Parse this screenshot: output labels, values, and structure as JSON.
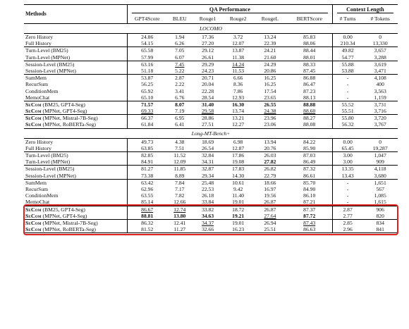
{
  "table": {
    "headers": {
      "methods": "Methods",
      "qa_group": "QA Performance",
      "ctx_group": "Context Length",
      "cols": [
        "GPT4Score",
        "BLEU",
        "Rouge1",
        "Rouge2",
        "RougeL",
        "BERTScore",
        "# Turns",
        "# Tokens"
      ]
    },
    "sections": [
      {
        "title": "LOCOMO",
        "groups": [
          [
            {
              "m": "Zero History",
              "v": [
                "24.86",
                "1.94",
                "17.36",
                "3.72",
                "13.24",
                "85.83",
                "0.00",
                "0"
              ]
            },
            {
              "m": "Full History",
              "v": [
                "54.15",
                "6.26",
                "27.20",
                "12.07",
                "22.39",
                "88.06",
                "210.34",
                "13,330"
              ]
            }
          ],
          [
            {
              "m": "Turn-Level (BM25)",
              "v": [
                "65.58",
                "7.05",
                "29.12",
                "13.87",
                "24.21",
                "88.44",
                "49.82",
                "3,657"
              ]
            },
            {
              "m": "Turn-Level (MPNet)",
              "v": [
                "57.99",
                "6.07",
                "26.61",
                "11.38",
                "21.60",
                "88.01",
                "54.77",
                "3,288"
              ]
            }
          ],
          [
            {
              "m": "Session-Level (BM25)",
              "v": [
                "63.16",
                "7.45",
                "29.29",
                "14.24",
                "24.29",
                "88.33",
                "55.88",
                "3,619"
              ],
              "u": [
                1,
                3
              ]
            },
            {
              "m": "Session-Level (MPNet)",
              "v": [
                "51.18",
                "5.22",
                "24.23",
                "11.53",
                "20.86",
                "87.45",
                "53.88",
                "3,471"
              ]
            }
          ],
          [
            {
              "m": "SumMem",
              "v": [
                "53.87",
                "2.87",
                "20.71",
                "6.66",
                "16.25",
                "86.88",
                "-",
                "4,108"
              ]
            },
            {
              "m": "RecurSum",
              "v": [
                "56.25",
                "2.22",
                "20.04",
                "8.36",
                "16.25",
                "86.47",
                "-",
                "400"
              ]
            },
            {
              "m": "ConditionMem",
              "v": [
                "65.92",
                "3.41",
                "22.28",
                "7.86",
                "17.54",
                "87.23",
                "-",
                "3,563"
              ]
            },
            {
              "m": "MemoChat",
              "v": [
                "65.10",
                "6.76",
                "28.54",
                "12.93",
                "23.65",
                "88.13",
                "-",
                "1,159"
              ]
            }
          ],
          [
            {
              "m": "SeCom",
              "s": " (BM25, GPT4-Seg)",
              "v": [
                "71.57",
                "8.07",
                "31.40",
                "16.30",
                "26.55",
                "88.88",
                "55.52",
                "3,731"
              ],
              "b": [
                0,
                1,
                2,
                3,
                4,
                5
              ]
            },
            {
              "m": "SeCom",
              "s": " (MPNet, GPT4-Seg)",
              "v": [
                "69.33",
                "7.19",
                "29.58",
                "13.74",
                "24.38",
                "88.60",
                "55.51",
                "3,716"
              ],
              "u": [
                0,
                2,
                4,
                5
              ]
            }
          ],
          [
            {
              "m": "SeCom",
              "s": " (MPNet, Mistral-7B-Seg)",
              "v": [
                "66.37",
                "6.95",
                "28.86",
                "13.21",
                "23.96",
                "88.27",
                "55.80",
                "3,720"
              ]
            },
            {
              "m": "SeCom",
              "s": " (MPNet, RoBERTa-Seg)",
              "v": [
                "61.84",
                "6.41",
                "27.51",
                "12.27",
                "23.06",
                "88.08",
                "56.32",
                "3,767"
              ]
            }
          ]
        ]
      },
      {
        "title": "Long-MT-Bench+",
        "groups": [
          [
            {
              "m": "Zero History",
              "v": [
                "49.73",
                "4.38",
                "18.69",
                "6.98",
                "13.94",
                "84.22",
                "0.00",
                "0"
              ]
            },
            {
              "m": "Full History",
              "v": [
                "63.85",
                "7.51",
                "26.54",
                "12.87",
                "20.76",
                "85.90",
                "65.45",
                "19,287"
              ]
            }
          ],
          [
            {
              "m": "Turn-Level (BM25)",
              "v": [
                "82.85",
                "11.52",
                "32.84",
                "17.86",
                "26.03",
                "87.03",
                "3.00",
                "1,047"
              ]
            },
            {
              "m": "Turn-Level (MPNet)",
              "v": [
                "84.91",
                "12.09",
                "34.31",
                "19.08",
                "27.82",
                "86.49",
                "3.00",
                "909"
              ],
              "b": [
                4
              ]
            }
          ],
          [
            {
              "m": "Session-Level (BM25)",
              "v": [
                "81.27",
                "11.85",
                "32.87",
                "17.83",
                "26.82",
                "87.32",
                "13.35",
                "4,118"
              ]
            },
            {
              "m": "Session-Level (MPNet)",
              "v": [
                "73.38",
                "8.89",
                "29.34",
                "14.30",
                "22.79",
                "86.61",
                "13.43",
                "3,680"
              ]
            }
          ],
          [
            {
              "m": "SumMem",
              "v": [
                "63.42",
                "7.84",
                "25.48",
                "10.61",
                "18.66",
                "85.70",
                "-",
                "1,651"
              ]
            },
            {
              "m": "RecurSum",
              "v": [
                "62.96",
                "7.17",
                "22.53",
                "9.42",
                "16.97",
                "84.90",
                "-",
                "567"
              ]
            },
            {
              "m": "ConditionMem",
              "v": [
                "63.55",
                "7.82",
                "26.18",
                "11.40",
                "19.56",
                "86.10",
                "-",
                "1,085"
              ]
            },
            {
              "m": "MemoChat",
              "v": [
                "85.14",
                "12.66",
                "33.84",
                "19.01",
                "26.87",
                "87.21",
                "-",
                "1,615"
              ]
            }
          ],
          [
            {
              "m": "SeCom",
              "s": " (BM25, GPT4-Seg)",
              "v": [
                "86.67",
                "12.74",
                "33.82",
                "18.72",
                "26.87",
                "87.37",
                "2.87",
                "906"
              ],
              "u": [
                0,
                1
              ]
            },
            {
              "m": "SeCom",
              "s": " (MPNet, GPT4-Seg)",
              "v": [
                "88.81",
                "13.80",
                "34.63",
                "19.21",
                "27.64",
                "87.72",
                "2.77",
                "820"
              ],
              "b": [
                0,
                1,
                2,
                3,
                5
              ],
              "u": [
                4
              ]
            }
          ],
          [
            {
              "m": "SeCom",
              "s": " (MPNet, Mistral-7B-Seg)",
              "v": [
                "86.32",
                "12.41",
                "34.37",
                "19.01",
                "26.94",
                "87.43",
                "2.85",
                "834"
              ],
              "u": [
                2,
                5
              ]
            },
            {
              "m": "SeCom",
              "s": " (MPNet, RoBERTa-Seg)",
              "v": [
                "81.52",
                "11.27",
                "32.66",
                "16.23",
                "25.51",
                "86.63",
                "2.96",
                "841"
              ]
            }
          ]
        ]
      }
    ]
  },
  "colors": {
    "highlight_box": "#e0201b",
    "rule": "#000000"
  }
}
